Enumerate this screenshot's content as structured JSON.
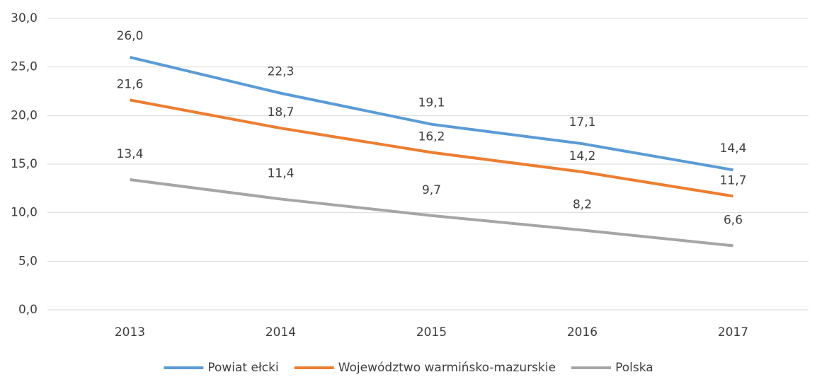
{
  "chart_data": {
    "type": "line",
    "categories": [
      "2013",
      "2014",
      "2015",
      "2016",
      "2017"
    ],
    "series": [
      {
        "name": "Powiat ełcki",
        "color": "#5b9bd5",
        "values": [
          26.0,
          22.3,
          19.1,
          17.1,
          14.4
        ],
        "value_labels": [
          "26,0",
          "22,3",
          "19,1",
          "17,1",
          "14,4"
        ]
      },
      {
        "name": "Województwo warmińsko-mazurskie",
        "color": "#ed7d31",
        "values": [
          21.6,
          18.7,
          16.2,
          14.2,
          11.7
        ],
        "value_labels": [
          "21,6",
          "18,7",
          "16,2",
          "14,2",
          "11,7"
        ]
      },
      {
        "name": "Polska",
        "color": "#a5a5a5",
        "values": [
          13.4,
          11.4,
          9.7,
          8.2,
          6.6
        ],
        "value_labels": [
          "13,4",
          "11,4",
          "9,7",
          "8,2",
          "6,6"
        ]
      }
    ],
    "ylim": [
      0,
      30
    ],
    "yticks": [
      {
        "value": 0,
        "label": "0,0"
      },
      {
        "value": 5,
        "label": "5,0"
      },
      {
        "value": 10,
        "label": "10,0"
      },
      {
        "value": 15,
        "label": "15,0"
      },
      {
        "value": 20,
        "label": "20,0"
      },
      {
        "value": 25,
        "label": "25,0"
      },
      {
        "value": 30,
        "label": "30,0"
      }
    ],
    "grid": true,
    "legend": "bottom"
  }
}
